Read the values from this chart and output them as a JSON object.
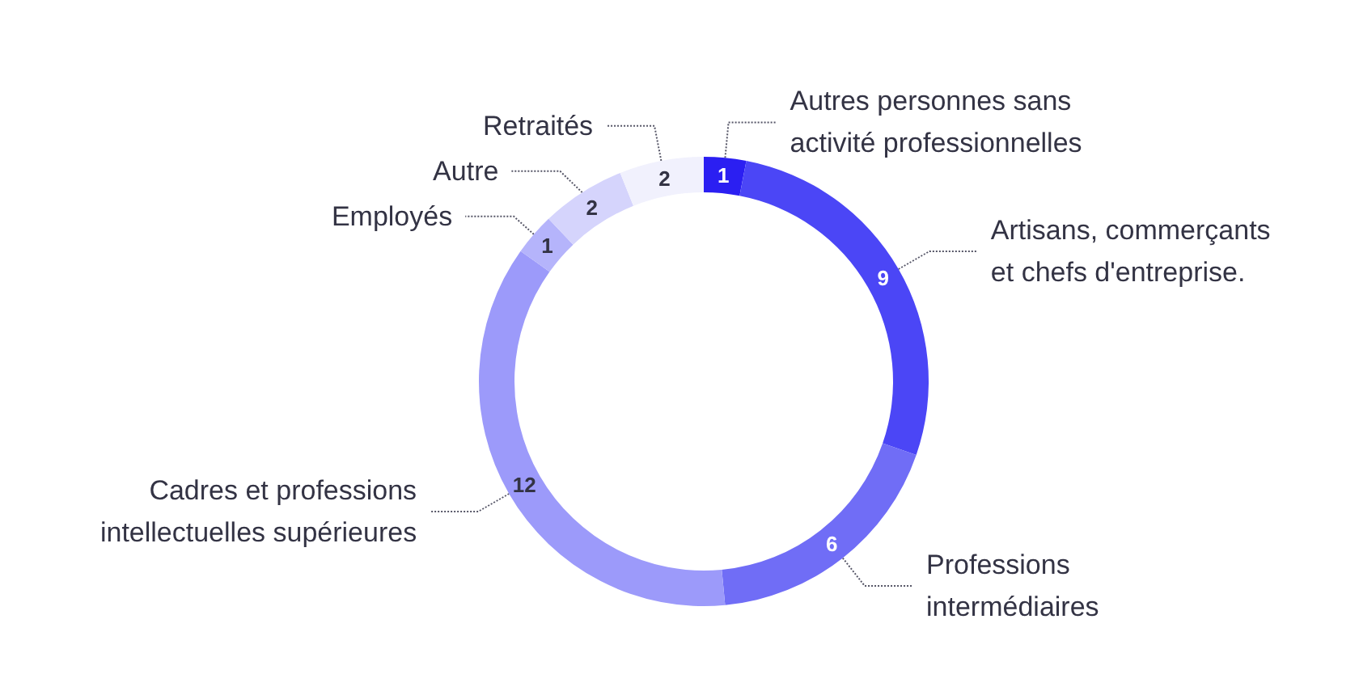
{
  "chart_data": {
    "type": "donut",
    "categories": [
      "Autres personnes sans activité professionnelles",
      "Artisans, commerçants et chefs d'entreprise.",
      "Professions intermédiaires",
      "Cadres et professions intellectuelles supérieures",
      "Employés",
      "Autre",
      "Retraités"
    ],
    "values": [
      1,
      9,
      6,
      12,
      1,
      2,
      2
    ],
    "colors": [
      "#2b1ff2",
      "#4b46f6",
      "#706df6",
      "#9c9afa",
      "#b5b4fb",
      "#d5d4fc",
      "#f1f1fd"
    ],
    "data_labels": true,
    "legend": false
  }
}
